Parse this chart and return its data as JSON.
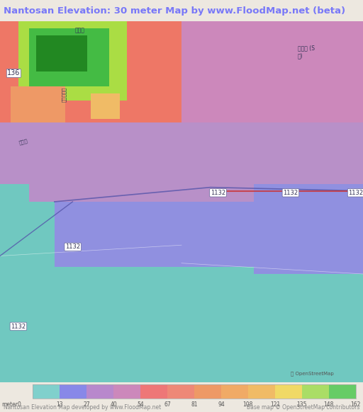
{
  "title": "Nantosan Elevation: 30 meter Map by www.FloodMap.net (beta)",
  "title_color": "#7878f8",
  "title_bg": "#ede8e0",
  "map_bg": "#c8eaea",
  "colorbar_labels": [
    0,
    13,
    27,
    40,
    54,
    67,
    81,
    94,
    108,
    121,
    135,
    148,
    162
  ],
  "colorbar_colors": [
    "#80d0cc",
    "#8888e8",
    "#b888cc",
    "#cc88bb",
    "#ee7777",
    "#ee8877",
    "#ee9966",
    "#f0aa66",
    "#f0bb66",
    "#f0d966",
    "#aadd66",
    "#66cc66"
  ],
  "footer_left": "Nantosan Elevation Map developed by www.FloodMap.net",
  "footer_right": "Base map © OpenStreetMap contributors",
  "footer_color": "#888888",
  "colorbar_bg": "#ede8e0",
  "map_area_colors": {
    "deep_teal": "#70c8c0",
    "purple": "#9090e0",
    "light_purple": "#b890c8",
    "pink_purple": "#cc88bb",
    "red_orange": "#ee7766",
    "orange": "#ee9966",
    "light_orange": "#f0bb66",
    "yellow": "#f0d966",
    "yellow_green": "#aadd44",
    "green": "#44bb44",
    "dark_green": "#228822"
  },
  "figsize": [
    5.12,
    5.82
  ],
  "dpi": 100
}
